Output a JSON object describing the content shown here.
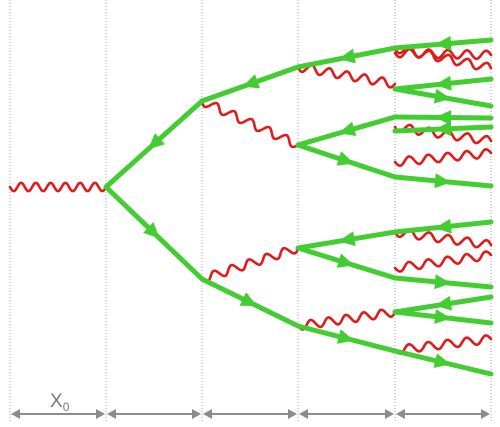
{
  "radiation_length_label": "X",
  "radiation_length_subscript": "0",
  "colors": {
    "electron": "#44cc33",
    "photon": "#e01b1b",
    "grid": "#a6a6a6",
    "scale": "#8c8c8c"
  },
  "layers": 5
}
